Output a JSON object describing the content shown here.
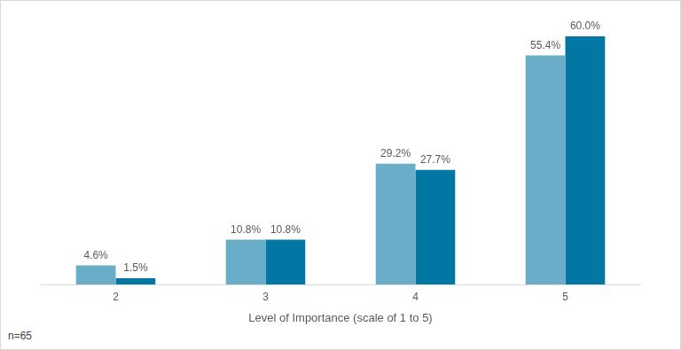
{
  "chart_data": {
    "type": "bar",
    "x_label": "Level of Importance (scale of 1 to 5)",
    "annotations": [
      "n=65"
    ],
    "categories": [
      "2",
      "3",
      "4",
      "5"
    ],
    "series": [
      {
        "color": "#69adc8",
        "values": [
          4.6,
          10.8,
          29.2,
          55.4
        ],
        "value_labels": [
          "4.6%",
          "10.8%",
          "29.2%",
          "55.4%"
        ]
      },
      {
        "color": "#0277a3",
        "values": [
          1.5,
          10.8,
          27.7,
          60.0
        ],
        "value_labels": [
          "1.5%",
          "10.8%",
          "27.7%",
          "60.0%"
        ]
      }
    ],
    "ylim": [
      0,
      60
    ],
    "grid": false,
    "legend": false,
    "data_labels": true,
    "tick_labels": "x"
  }
}
